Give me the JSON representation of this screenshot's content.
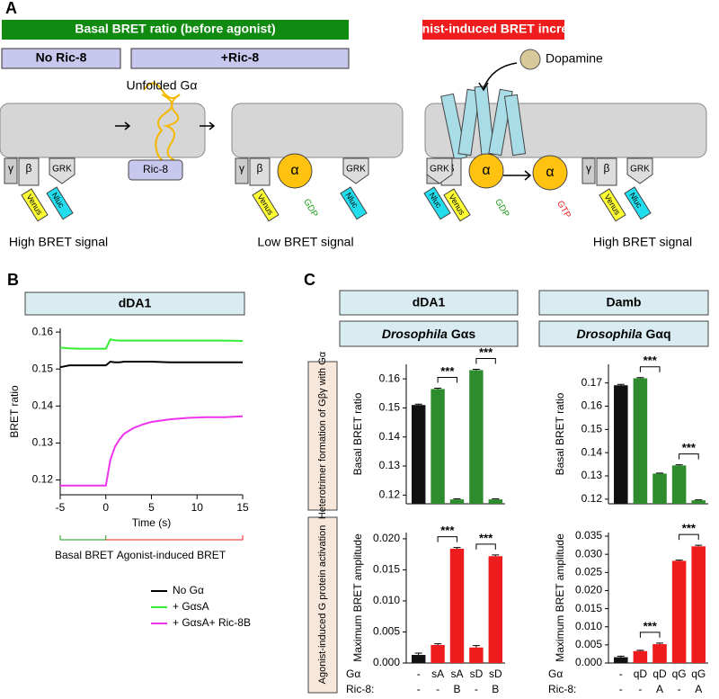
{
  "diagram": {
    "label": "A",
    "basal_title": "Basal BRET ratio (before agonist)",
    "agonist_title": "Agonist-induced BRET increase",
    "no_ric8": "No Ric-8",
    "plus_ric8": "+Ric-8",
    "unfolded": "Unfolded Gα",
    "ric8": "Ric-8",
    "dopamine": "Dopamine",
    "signals": [
      "High BRET signal",
      "Low BRET signal",
      "High BRET signal"
    ],
    "gamma": "γ",
    "beta": "β",
    "grk": "GRK",
    "venus": "Venus",
    "nluc": "Nluc",
    "alpha": "α",
    "gdp": "GDP",
    "gtp": "GTP"
  },
  "panel_b": {
    "label": "B",
    "header": "dDA1",
    "basal": "Basal BRET",
    "agonist": "Agonist-induced BRET"
  },
  "panel_c": {
    "label": "C",
    "headers": [
      {
        "receptor": "dDA1",
        "species": "Drosophila",
        "protein": "Gαs"
      },
      {
        "receptor": "Damb",
        "species": "Drosophila",
        "protein": "Gαq"
      }
    ],
    "side_labels": [
      "Heterotrimer formation of Gβγ with Gα",
      "Agonist-induced G protein activation"
    ],
    "row_labels": [
      "Gα",
      "Ric-8:"
    ]
  },
  "chart_data": [
    {
      "type": "line",
      "ylabel": "BRET ratio",
      "xlabel": "Time (s)",
      "xlim": [
        -5,
        15
      ],
      "xticks": [
        -5,
        0,
        5,
        10,
        15
      ],
      "ylim": [
        0.116,
        0.161
      ],
      "yticks": [
        0.12,
        0.13,
        0.14,
        0.15,
        0.16
      ],
      "x": [
        -5,
        -4,
        -3,
        -2,
        -1,
        0,
        0.5,
        1,
        1.5,
        2,
        3,
        4,
        5,
        7,
        9,
        11,
        13,
        15
      ],
      "series": [
        {
          "name": "No Gα",
          "color": "#000000",
          "values": [
            0.1505,
            0.151,
            0.151,
            0.151,
            0.151,
            0.151,
            0.152,
            0.1518,
            0.1518,
            0.152,
            0.152,
            0.152,
            0.152,
            0.1518,
            0.1518,
            0.1518,
            0.1518,
            0.1518
          ]
        },
        {
          "name": "+ GαsA",
          "color": "#33ee33",
          "values": [
            0.1558,
            0.1556,
            0.1555,
            0.1555,
            0.1555,
            0.1555,
            0.158,
            0.1578,
            0.1577,
            0.1577,
            0.1577,
            0.1577,
            0.1577,
            0.1577,
            0.1577,
            0.1577,
            0.1577,
            0.1576
          ]
        },
        {
          "name": "+ GαsA+ Ric-8B",
          "color": "#ee33ee",
          "values": [
            0.1185,
            0.1185,
            0.1185,
            0.1185,
            0.1185,
            0.1185,
            0.1255,
            0.129,
            0.131,
            0.1325,
            0.134,
            0.135,
            0.1357,
            0.1364,
            0.1368,
            0.137,
            0.137,
            0.1372
          ]
        }
      ]
    },
    {
      "type": "bar",
      "ylabel": "Basal BRET ratio",
      "ylim": [
        0.117,
        0.165
      ],
      "yticks": [
        0.12,
        0.13,
        0.14,
        0.15,
        0.16
      ],
      "categories": [
        null,
        null,
        null,
        null,
        null
      ],
      "values": [
        0.151,
        0.1565,
        0.1185,
        0.163,
        0.1185
      ],
      "errors": [
        0.0003,
        0.0003,
        0.0002,
        0.0003,
        0.0002
      ],
      "colors": [
        "#111111",
        "#2e8b2e",
        "#2e8b2e",
        "#2e8b2e",
        "#2e8b2e"
      ],
      "brackets": [
        {
          "label": "***",
          "bars": [
            1,
            2
          ]
        },
        {
          "label": "***",
          "bars": [
            3,
            4
          ]
        }
      ]
    },
    {
      "type": "bar",
      "ylabel": "Maximum BRET amplitude",
      "ylim": [
        0,
        0.021
      ],
      "yticks": [
        {
          "value": 0,
          "label": "0.000"
        },
        {
          "value": 0.005,
          "label": "0.005"
        },
        {
          "value": 0.01,
          "label": "0.010"
        },
        {
          "value": 0.015,
          "label": "0.015"
        },
        {
          "value": 0.02,
          "label": "0.020"
        }
      ],
      "categories": [
        "-",
        "sA",
        "sA",
        "sD",
        "sD"
      ],
      "categories2": [
        "-",
        "-",
        "B",
        "-",
        "B"
      ],
      "values": [
        0.0013,
        0.0029,
        0.0184,
        0.0025,
        0.0172
      ],
      "errors": [
        0.0003,
        0.0002,
        0.0002,
        0.0003,
        0.0002
      ],
      "colors": [
        "#111111",
        "#ee1c1c",
        "#ee1c1c",
        "#ee1c1c",
        "#ee1c1c"
      ],
      "brackets": [
        {
          "label": "***",
          "bars": [
            1,
            2
          ]
        },
        {
          "label": "***",
          "bars": [
            3,
            4
          ]
        }
      ]
    },
    {
      "type": "bar",
      "ylabel": "Basal BRET ratio",
      "ylim": [
        0.118,
        0.178
      ],
      "yticks": [
        0.12,
        0.13,
        0.14,
        0.15,
        0.16,
        0.17
      ],
      "categories": [
        null,
        null,
        null,
        null,
        null
      ],
      "values": [
        0.169,
        0.172,
        0.131,
        0.1345,
        0.1195
      ],
      "errors": [
        0.0004,
        0.0003,
        0.0002,
        0.0003,
        0.0002
      ],
      "colors": [
        "#111111",
        "#2e8b2e",
        "#2e8b2e",
        "#2e8b2e",
        "#2e8b2e"
      ],
      "brackets": [
        {
          "label": "***",
          "bars": [
            1,
            2
          ]
        },
        {
          "label": "***",
          "bars": [
            3,
            4
          ]
        }
      ]
    },
    {
      "type": "bar",
      "ylabel": "Maximum BRET amplitude",
      "ylim": [
        0,
        0.036
      ],
      "yticks": [
        {
          "value": 0,
          "label": "0.000"
        },
        {
          "value": 0.005,
          "label": "0.005"
        },
        {
          "value": 0.01,
          "label": "0.010"
        },
        {
          "value": 0.015,
          "label": "0.015"
        },
        {
          "value": 0.02,
          "label": "0.020"
        },
        {
          "value": 0.025,
          "label": "0.025"
        },
        {
          "value": 0.03,
          "label": "0.030"
        },
        {
          "value": 0.035,
          "label": "0.035"
        }
      ],
      "categories": [
        "-",
        "qD",
        "qD",
        "qG",
        "qG"
      ],
      "categories2": [
        "-",
        "-",
        "A",
        "-",
        "A"
      ],
      "values": [
        0.0016,
        0.0033,
        0.0052,
        0.0282,
        0.0322
      ],
      "errors": [
        0.0003,
        0.0002,
        0.0003,
        0.0002,
        0.0003
      ],
      "colors": [
        "#111111",
        "#ee1c1c",
        "#ee1c1c",
        "#ee1c1c",
        "#ee1c1c"
      ],
      "brackets": [
        {
          "label": "***",
          "bars": [
            1,
            2
          ]
        },
        {
          "label": "***",
          "bars": [
            3,
            4
          ]
        }
      ]
    }
  ]
}
